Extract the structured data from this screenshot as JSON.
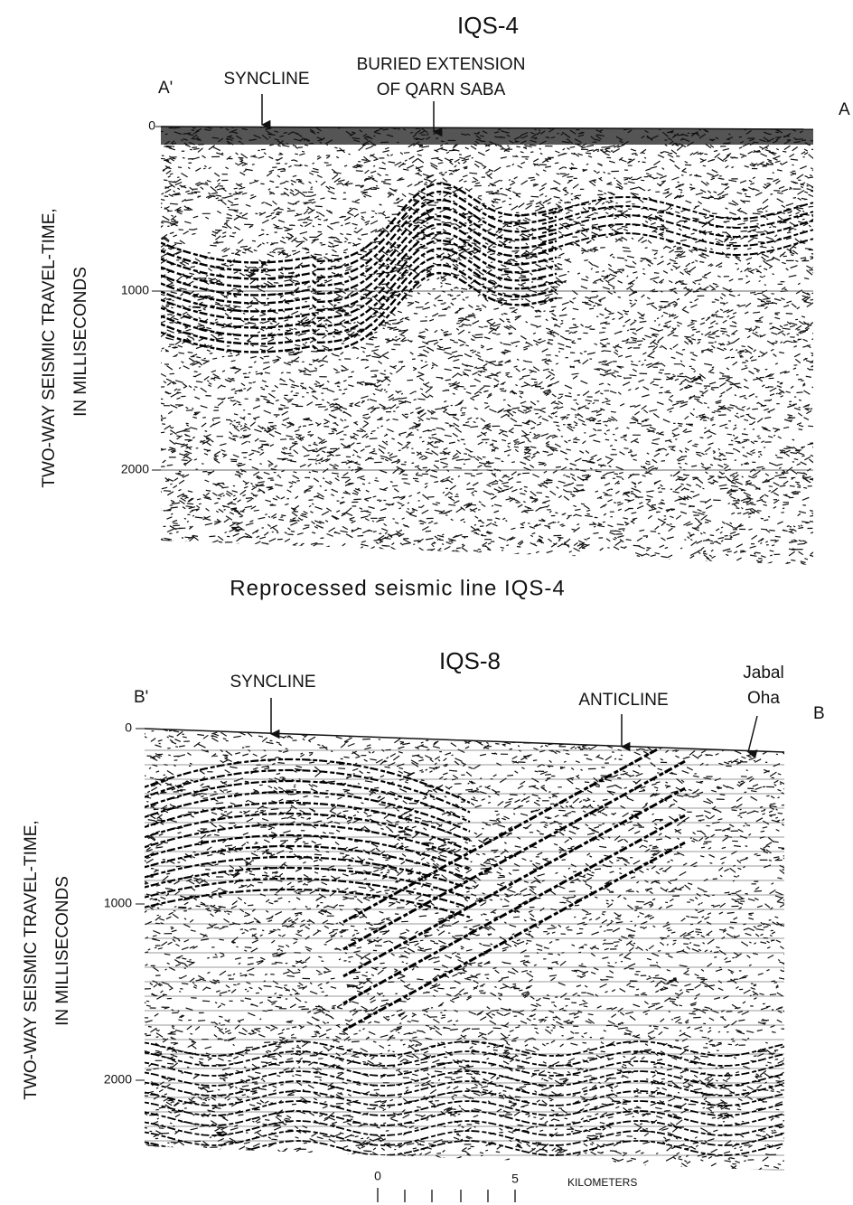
{
  "panels": [
    {
      "title": "IQS-4",
      "left_end": "A'",
      "right_end": "A",
      "annotations": [
        "SYNCLINE",
        "BURIED EXTENSION",
        "OF QARN SABA"
      ],
      "axis_label": [
        "TWO-WAY SEISMIC TRAVEL-TIME,",
        "IN MILLISECONDS"
      ],
      "ticks": [
        "0",
        "1000",
        "2000"
      ],
      "caption": "Reprocessed seismic line IQS-4"
    },
    {
      "title": "IQS-8",
      "left_end": "B'",
      "right_end": "B",
      "annotations": [
        "SYNCLINE",
        "ANTICLINE",
        "Jabal",
        "Oha"
      ],
      "axis_label": [
        "TWO-WAY SEISMIC TRAVEL-TIME,",
        "IN MILLISECONDS"
      ],
      "ticks": [
        "0",
        "1000",
        "2000"
      ]
    }
  ],
  "scale": {
    "start": "0",
    "end": "5",
    "unit": "KILOMETERS"
  }
}
